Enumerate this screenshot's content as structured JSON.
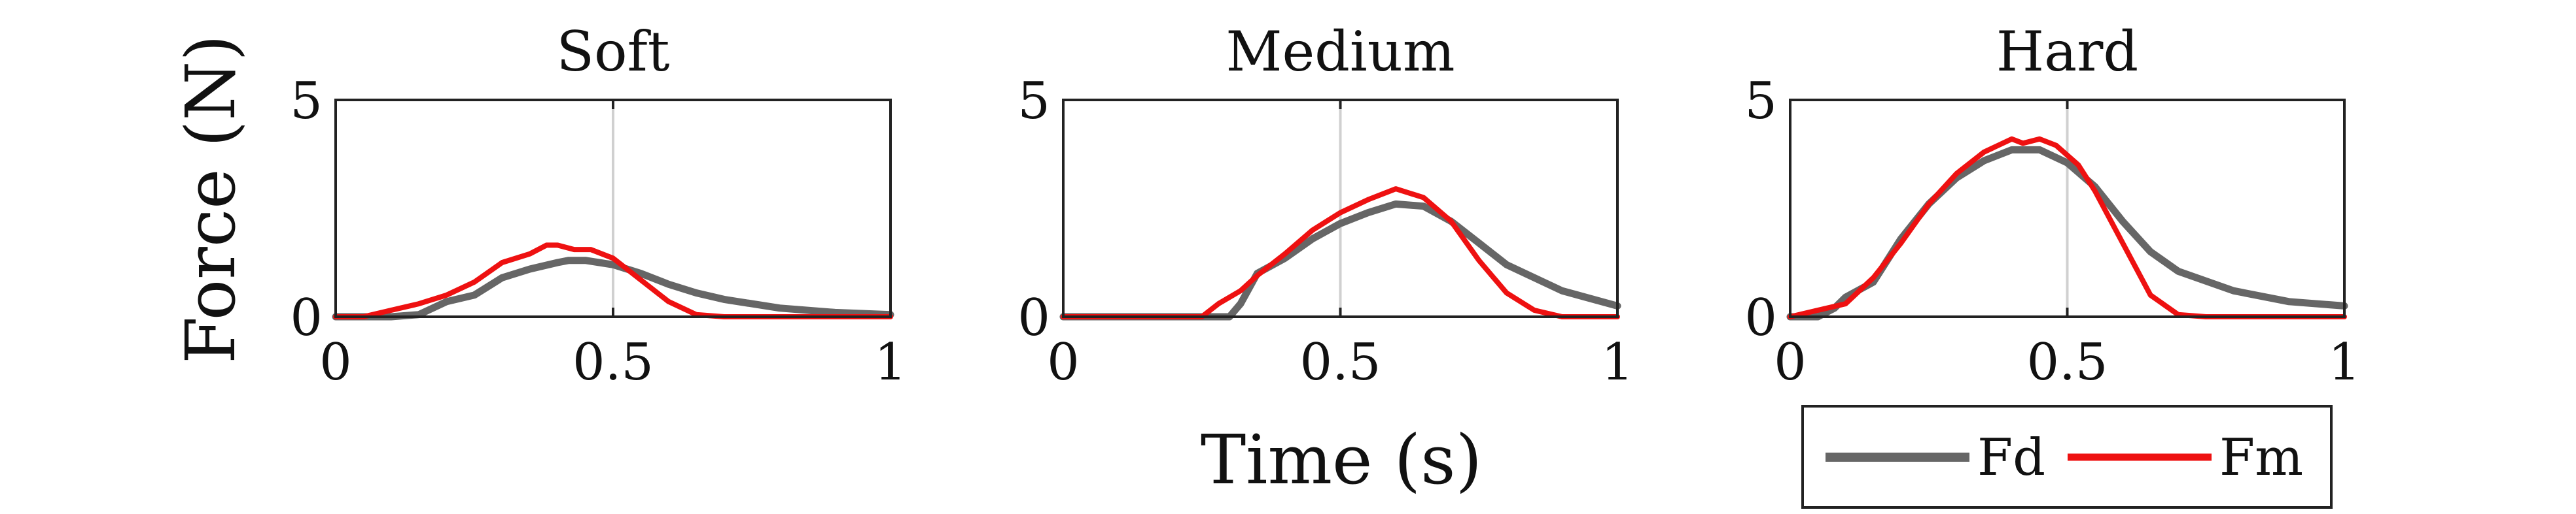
{
  "figure": {
    "ylabel": "Force (N)",
    "xlabel": "Time (s)"
  },
  "legend": {
    "placement": "bottom-right",
    "entries": [
      {
        "label": "Fd",
        "color": "#666666"
      },
      {
        "label": "Fm",
        "color": "#ee1111"
      }
    ]
  },
  "chart_data": [
    {
      "type": "line",
      "title": "Soft",
      "xlim": [
        0,
        1
      ],
      "ylim": [
        0,
        5
      ],
      "xticks": [
        0,
        0.5,
        1
      ],
      "xtick_labels": [
        "0",
        "0.5",
        "1"
      ],
      "yticks": [
        0,
        5
      ],
      "ytick_labels": [
        "0",
        "5"
      ],
      "vline_x": 0.5,
      "grid": false,
      "series": [
        {
          "name": "Fd",
          "color": "#666666",
          "x": [
            0,
            0.1,
            0.15,
            0.2,
            0.25,
            0.3,
            0.35,
            0.4,
            0.42,
            0.45,
            0.5,
            0.55,
            0.6,
            0.65,
            0.7,
            0.8,
            0.9,
            1.0
          ],
          "y": [
            0,
            0,
            0.05,
            0.35,
            0.5,
            0.9,
            1.1,
            1.25,
            1.3,
            1.3,
            1.2,
            1.0,
            0.75,
            0.55,
            0.4,
            0.2,
            0.1,
            0.05
          ]
        },
        {
          "name": "Fm",
          "color": "#ee1111",
          "x": [
            0,
            0.05,
            0.1,
            0.15,
            0.2,
            0.25,
            0.3,
            0.35,
            0.38,
            0.4,
            0.43,
            0.46,
            0.5,
            0.55,
            0.6,
            0.65,
            0.7,
            0.8,
            1.0
          ],
          "y": [
            0,
            0,
            0.15,
            0.3,
            0.5,
            0.8,
            1.25,
            1.45,
            1.65,
            1.65,
            1.55,
            1.55,
            1.35,
            0.85,
            0.35,
            0.05,
            0,
            0,
            0
          ]
        }
      ]
    },
    {
      "type": "line",
      "title": "Medium",
      "xlim": [
        0,
        1
      ],
      "ylim": [
        0,
        5
      ],
      "xticks": [
        0,
        0.5,
        1
      ],
      "xtick_labels": [
        "0",
        "0.5",
        "1"
      ],
      "yticks": [
        0,
        5
      ],
      "ytick_labels": [
        "0",
        "5"
      ],
      "vline_x": 0.5,
      "grid": false,
      "series": [
        {
          "name": "Fd",
          "color": "#666666",
          "x": [
            0,
            0.3,
            0.32,
            0.35,
            0.4,
            0.45,
            0.5,
            0.55,
            0.6,
            0.65,
            0.7,
            0.75,
            0.8,
            0.9,
            1.0
          ],
          "y": [
            0,
            0,
            0.3,
            1.0,
            1.35,
            1.8,
            2.15,
            2.4,
            2.6,
            2.55,
            2.2,
            1.7,
            1.2,
            0.6,
            0.25
          ]
        },
        {
          "name": "Fm",
          "color": "#ee1111",
          "x": [
            0,
            0.25,
            0.28,
            0.32,
            0.35,
            0.4,
            0.45,
            0.5,
            0.55,
            0.6,
            0.65,
            0.7,
            0.75,
            0.8,
            0.85,
            0.9,
            0.95,
            1.0
          ],
          "y": [
            0,
            0,
            0.3,
            0.6,
            0.95,
            1.45,
            2.0,
            2.4,
            2.7,
            2.95,
            2.75,
            2.2,
            1.3,
            0.55,
            0.15,
            0,
            0,
            0
          ]
        }
      ]
    },
    {
      "type": "line",
      "title": "Hard",
      "xlim": [
        0,
        1
      ],
      "ylim": [
        0,
        5
      ],
      "xticks": [
        0,
        0.5,
        1
      ],
      "xtick_labels": [
        "0",
        "0.5",
        "1"
      ],
      "yticks": [
        0,
        5
      ],
      "ytick_labels": [
        "0",
        "5"
      ],
      "vline_x": 0.5,
      "grid": false,
      "series": [
        {
          "name": "Fd",
          "color": "#666666",
          "x": [
            0,
            0.05,
            0.08,
            0.1,
            0.15,
            0.2,
            0.25,
            0.3,
            0.35,
            0.4,
            0.45,
            0.5,
            0.55,
            0.6,
            0.65,
            0.7,
            0.8,
            0.9,
            1.0
          ],
          "y": [
            0,
            0,
            0.2,
            0.45,
            0.8,
            1.8,
            2.6,
            3.2,
            3.6,
            3.85,
            3.85,
            3.55,
            3.0,
            2.2,
            1.5,
            1.05,
            0.6,
            0.35,
            0.25
          ]
        },
        {
          "name": "Fm",
          "color": "#ee1111",
          "x": [
            0,
            0.05,
            0.1,
            0.15,
            0.2,
            0.25,
            0.3,
            0.35,
            0.4,
            0.42,
            0.45,
            0.48,
            0.52,
            0.55,
            0.6,
            0.65,
            0.7,
            0.75,
            1.0
          ],
          "y": [
            0,
            0.15,
            0.3,
            0.9,
            1.7,
            2.6,
            3.3,
            3.8,
            4.1,
            4.0,
            4.1,
            3.95,
            3.5,
            2.9,
            1.7,
            0.5,
            0.05,
            0,
            0
          ]
        }
      ]
    }
  ]
}
